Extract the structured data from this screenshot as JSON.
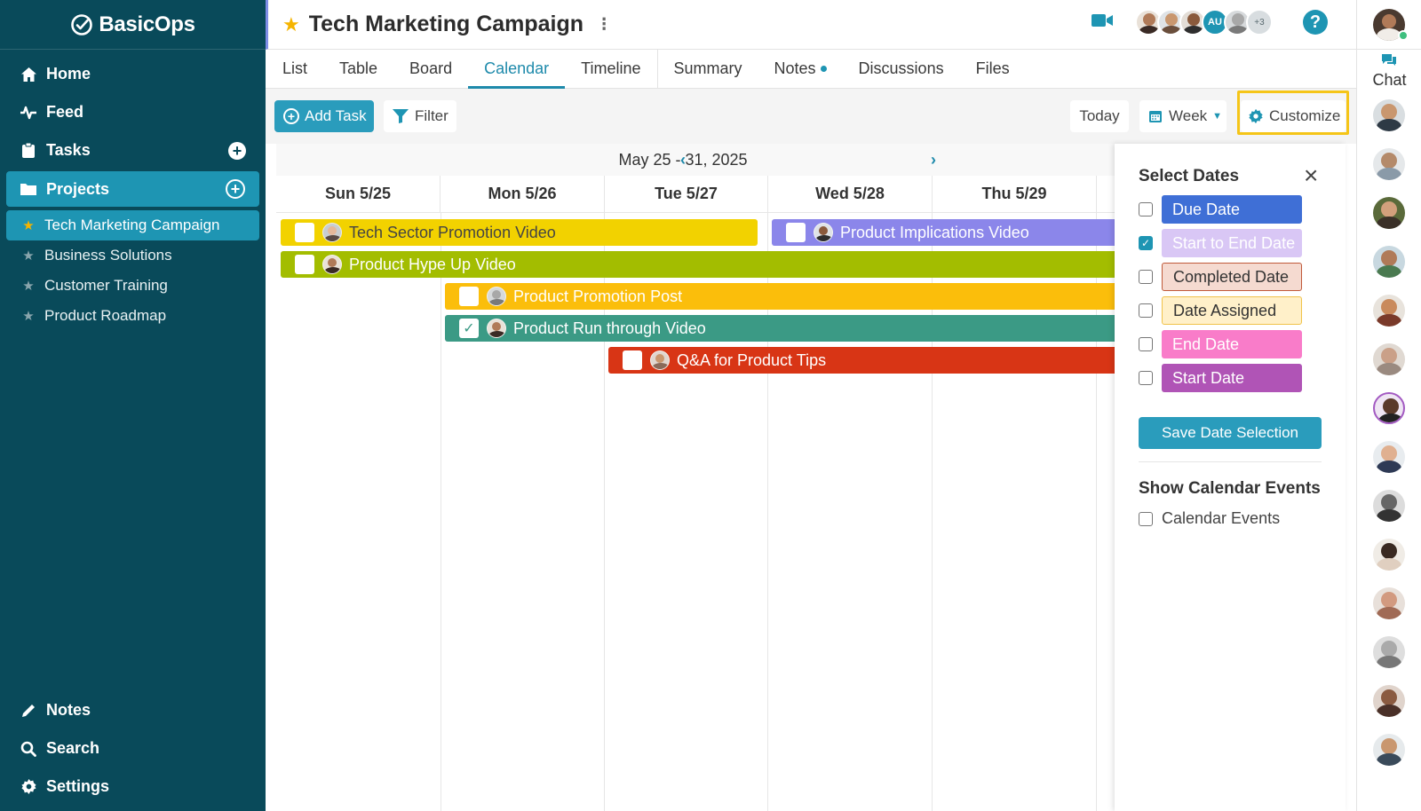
{
  "app": {
    "name": "BasicOps"
  },
  "sidebar": {
    "nav": [
      {
        "label": "Home",
        "icon": "home-icon"
      },
      {
        "label": "Feed",
        "icon": "activity-icon"
      },
      {
        "label": "Tasks",
        "icon": "clipboard-icon"
      },
      {
        "label": "Projects",
        "icon": "folder-icon"
      }
    ],
    "projects": [
      {
        "label": "Tech Marketing Campaign",
        "active": true
      },
      {
        "label": "Business Solutions"
      },
      {
        "label": "Customer Training"
      },
      {
        "label": "Product Roadmap"
      }
    ],
    "bottom": [
      {
        "label": "Notes",
        "icon": "pencil-icon"
      },
      {
        "label": "Search",
        "icon": "search-icon"
      },
      {
        "label": "Settings",
        "icon": "gear-icon"
      }
    ]
  },
  "header": {
    "title": "Tech Marketing Campaign",
    "avatar_initials": "AU",
    "more_count": "+3",
    "help": "?"
  },
  "tabs": [
    "List",
    "Table",
    "Board",
    "Calendar",
    "Timeline",
    "Summary",
    "Notes",
    "Discussions",
    "Files"
  ],
  "active_tab": "Calendar",
  "toolbar": {
    "add_task": "Add Task",
    "filter": "Filter",
    "today": "Today",
    "week": "Week",
    "customize": "Customize"
  },
  "calendar": {
    "range": "May 25 - 31, 2025",
    "days": [
      "Sun 5/25",
      "Mon 5/26",
      "Tue 5/27",
      "Wed 5/28",
      "Thu 5/29"
    ],
    "tasks": [
      {
        "name": "Tech Sector Promotion Video",
        "color": "#f2d200",
        "done": false
      },
      {
        "name": "Product Implications Video",
        "color": "#8b86ea",
        "done": false
      },
      {
        "name": "Product Hype Up Video",
        "color": "#a3bd00",
        "done": false
      },
      {
        "name": "Product Promotion Post",
        "color": "#fbbe0b",
        "done": false
      },
      {
        "name": "Product Run through Video",
        "color": "#3b9a85",
        "done": true
      },
      {
        "name": "Q&A for Product Tips",
        "color": "#d83515",
        "done": false
      }
    ]
  },
  "panel": {
    "title": "Select Dates",
    "options": [
      {
        "label": "Due Date",
        "bg": "#3f6fd6",
        "fg": "#ffffff",
        "checked": false
      },
      {
        "label": "Start to End Date",
        "bg": "#d9c7f5",
        "fg": "#ffffff",
        "checked": true
      },
      {
        "label": "Completed Date",
        "bg": "#f5dad0",
        "fg": "#333333",
        "border": "#c05a3a",
        "checked": false
      },
      {
        "label": "Date Assigned",
        "bg": "#fff0c9",
        "fg": "#333333",
        "border": "#f0c24a",
        "checked": false
      },
      {
        "label": "End Date",
        "bg": "#f97cc9",
        "fg": "#ffffff",
        "checked": false
      },
      {
        "label": "Start Date",
        "bg": "#b054b6",
        "fg": "#ffffff",
        "checked": false
      }
    ],
    "save": "Save Date Selection",
    "events_title": "Show Calendar Events",
    "events_label": "Calendar Events"
  },
  "rail": {
    "chat": "Chat"
  }
}
